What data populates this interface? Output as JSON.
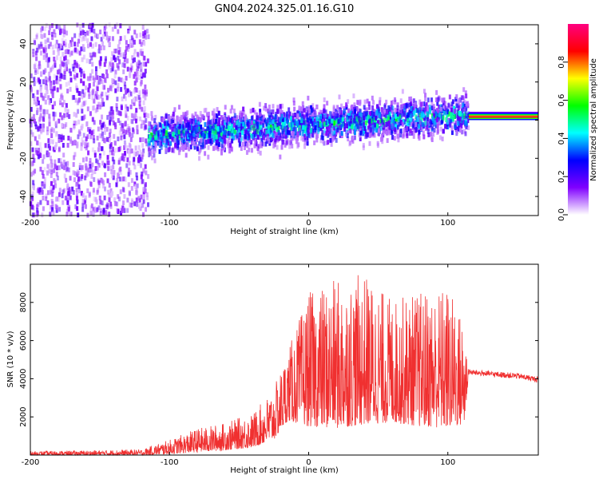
{
  "title": "GN04.2024.325.01.16.G10",
  "chart_data": [
    {
      "type": "heatmap",
      "xlabel": "Height of straight line (km)",
      "ylabel": "Frequency (Hz)",
      "xlim": [
        -200,
        165
      ],
      "ylim": [
        -50,
        50
      ],
      "xticks": [
        -200,
        -100,
        0,
        100
      ],
      "yticks": [
        -40,
        -20,
        0,
        20,
        40
      ],
      "colorbar": {
        "label": "Normalized spectral amplitude",
        "range": [
          0,
          1
        ],
        "ticks": [
          "0.0",
          "0.2",
          "0.4",
          "0.6",
          "0.8"
        ],
        "colors": [
          "#ffffff",
          "#8000ff",
          "#0000ff",
          "#00ffff",
          "#00ff00",
          "#ffff00",
          "#ff0000",
          "#ff0080"
        ]
      },
      "regions": [
        {
          "x_range": [
            -200,
            -115
          ],
          "freq_range": [
            -50,
            50
          ],
          "amplitude": 0.1,
          "note": "scattered noise"
        },
        {
          "x_range": [
            -115,
            115
          ],
          "center_freq": [
            -8,
            3
          ],
          "spread_hz": 20,
          "amplitude": 0.35
        },
        {
          "x_range": [
            115,
            165
          ],
          "center_freq": 2,
          "amplitude": 0.9
        }
      ]
    },
    {
      "type": "line",
      "xlabel": "Height of straight line (km)",
      "ylabel": "SNR (10 * v/v)",
      "xlim": [
        -200,
        165
      ],
      "ylim": [
        0,
        10000
      ],
      "xticks": [
        -200,
        -100,
        0,
        100
      ],
      "yticks": [
        2000,
        4000,
        6000,
        8000
      ],
      "series_color": "#f03030",
      "envelope": {
        "x": [
          -200,
          -150,
          -120,
          -100,
          -80,
          -60,
          -40,
          -25,
          -15,
          0,
          20,
          40,
          60,
          80,
          100,
          112,
          115,
          130,
          150,
          165
        ],
        "low": [
          0,
          0,
          0,
          50,
          150,
          250,
          400,
          800,
          1800,
          1500,
          1400,
          1600,
          1700,
          1500,
          1400,
          1600,
          4200,
          4100,
          4000,
          3800
        ],
        "high": [
          200,
          250,
          300,
          800,
          1400,
          1700,
          2200,
          3500,
          5500,
          8500,
          9200,
          9500,
          8200,
          8600,
          8900,
          7000,
          4500,
          4400,
          4300,
          4100
        ]
      }
    }
  ]
}
